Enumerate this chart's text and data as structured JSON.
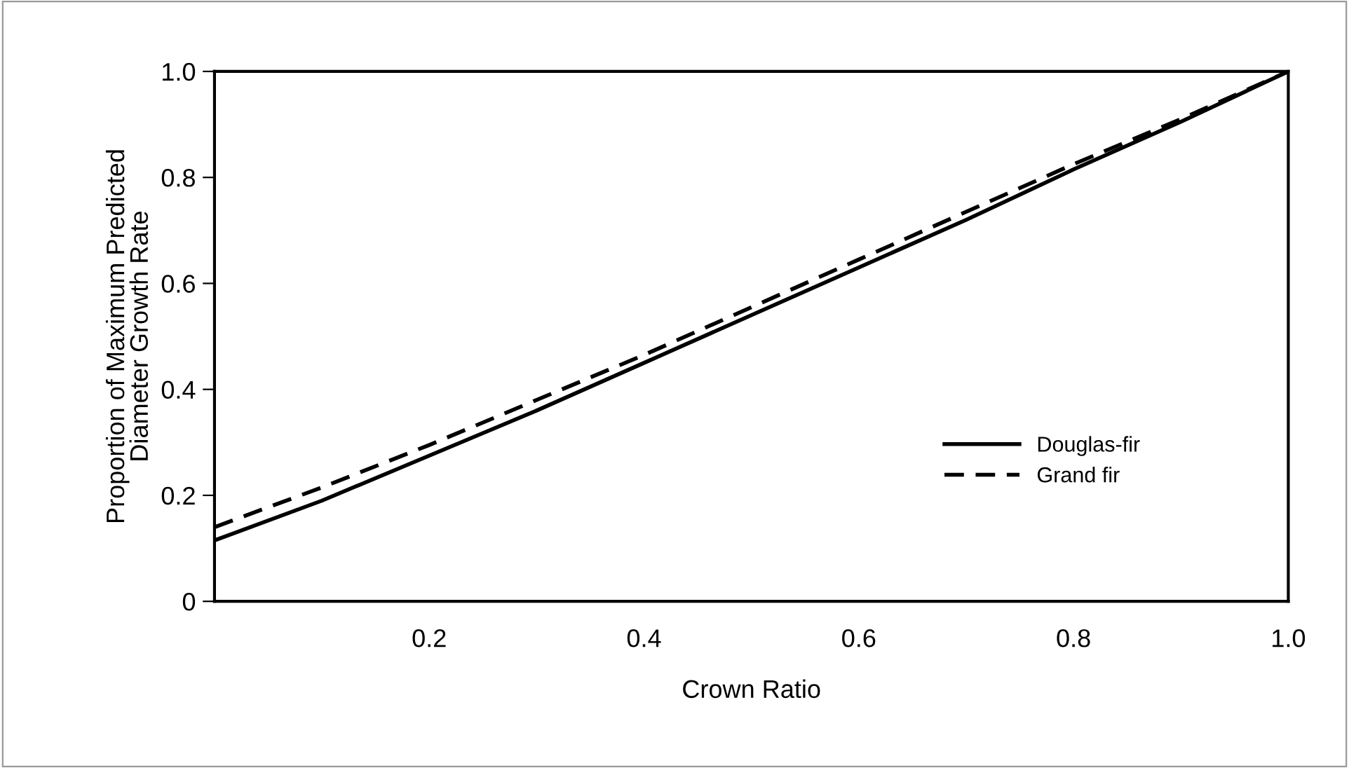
{
  "chart_data": {
    "type": "line",
    "xlabel": "Crown Ratio",
    "ylabel": "Proportion of Maximum Predicted\nDiameter Growth Rate",
    "x": [
      0,
      0.1,
      0.2,
      0.3,
      0.4,
      0.5,
      0.6,
      0.7,
      0.8,
      0.9,
      1.0
    ],
    "series": [
      {
        "name": "Douglas-fir",
        "color": "#000000",
        "line_style": "solid",
        "values": [
          0.115,
          0.19,
          0.275,
          0.36,
          0.45,
          0.54,
          0.63,
          0.72,
          0.815,
          0.905,
          1.0
        ]
      },
      {
        "name": "Grand fir",
        "color": "#000000",
        "line_style": "dashed",
        "values": [
          0.14,
          0.215,
          0.295,
          0.38,
          0.465,
          0.555,
          0.645,
          0.735,
          0.825,
          0.91,
          1.0
        ]
      }
    ],
    "xlim": [
      0,
      1
    ],
    "ylim": [
      0,
      1
    ],
    "xticks": [
      0.2,
      0.4,
      0.6,
      0.8,
      {
        "value": 1.0,
        "label": "1.0"
      }
    ],
    "yticks": [
      0,
      0.2,
      0.4,
      0.6,
      0.8,
      {
        "value": 1.0,
        "label": "1.0"
      }
    ],
    "grid": false,
    "legend": "bottom right",
    "marker": "none"
  }
}
